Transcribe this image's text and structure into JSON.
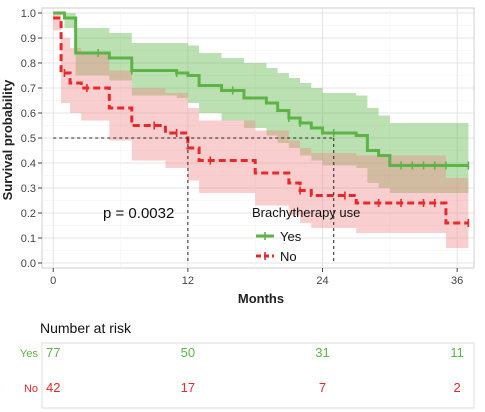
{
  "chart_data": {
    "type": "line",
    "subtype": "kaplan-meier survival curve with risk table",
    "xlabel": "Months",
    "ylabel": "Survival probability",
    "xlim": [
      -1,
      37.5
    ],
    "ylim": [
      -0.02,
      1.02
    ],
    "xticks": [
      0,
      12,
      24,
      36
    ],
    "xtick_labels": [
      "0",
      "12",
      "24",
      "36"
    ],
    "yticks": [
      0.0,
      0.1,
      0.2,
      0.3,
      0.4,
      0.5,
      0.6,
      0.7,
      0.8,
      0.9,
      1.0
    ],
    "ytick_labels": [
      "0.0",
      "0.1",
      "0.2",
      "0.3",
      "0.4",
      "0.5",
      "0.6",
      "0.7",
      "0.8",
      "0.9",
      "1.0"
    ],
    "grid": true,
    "annotation": "p = 0.0032",
    "median_reference": {
      "y": 0.5,
      "x_values": [
        12,
        25
      ]
    },
    "legend": {
      "title": "Brachytherapy use",
      "position": "inside-bottom-right"
    },
    "series": [
      {
        "name": "Yes",
        "color": "#5db446",
        "band_color": "#5db446",
        "line_style": "solid",
        "steps": [
          [
            0,
            1.0
          ],
          [
            1,
            0.98
          ],
          [
            2,
            0.84
          ],
          [
            5,
            0.82
          ],
          [
            7,
            0.77
          ],
          [
            11,
            0.76
          ],
          [
            12,
            0.75
          ],
          [
            13,
            0.71
          ],
          [
            15,
            0.69
          ],
          [
            17,
            0.66
          ],
          [
            19,
            0.64
          ],
          [
            20,
            0.61
          ],
          [
            21,
            0.58
          ],
          [
            22,
            0.56
          ],
          [
            23,
            0.54
          ],
          [
            24,
            0.52
          ],
          [
            27,
            0.51
          ],
          [
            28,
            0.45
          ],
          [
            29,
            0.43
          ],
          [
            30,
            0.39
          ],
          [
            37,
            0.39
          ]
        ],
        "upper": [
          [
            0,
            1.0
          ],
          [
            1,
            1.0
          ],
          [
            2,
            0.94
          ],
          [
            5,
            0.92
          ],
          [
            7,
            0.88
          ],
          [
            11,
            0.88
          ],
          [
            12,
            0.87
          ],
          [
            13,
            0.84
          ],
          [
            15,
            0.82
          ],
          [
            17,
            0.8
          ],
          [
            19,
            0.78
          ],
          [
            20,
            0.76
          ],
          [
            21,
            0.74
          ],
          [
            22,
            0.72
          ],
          [
            23,
            0.7
          ],
          [
            24,
            0.68
          ],
          [
            27,
            0.67
          ],
          [
            28,
            0.62
          ],
          [
            29,
            0.59
          ],
          [
            30,
            0.56
          ],
          [
            37,
            0.56
          ]
        ],
        "lower": [
          [
            0,
            1.0
          ],
          [
            1,
            0.94
          ],
          [
            2,
            0.75
          ],
          [
            5,
            0.73
          ],
          [
            7,
            0.67
          ],
          [
            11,
            0.66
          ],
          [
            12,
            0.64
          ],
          [
            13,
            0.6
          ],
          [
            15,
            0.57
          ],
          [
            17,
            0.54
          ],
          [
            19,
            0.51
          ],
          [
            20,
            0.48
          ],
          [
            21,
            0.46
          ],
          [
            22,
            0.43
          ],
          [
            23,
            0.41
          ],
          [
            24,
            0.39
          ],
          [
            27,
            0.38
          ],
          [
            28,
            0.32
          ],
          [
            29,
            0.3
          ],
          [
            30,
            0.28
          ],
          [
            37,
            0.28
          ]
        ],
        "censor_times": [
          4,
          7,
          11,
          16,
          21,
          22,
          25,
          31,
          32,
          33,
          34,
          35,
          37
        ]
      },
      {
        "name": "No",
        "color": "#e8292b",
        "band_color": "#f08a8a",
        "line_style": "dashed",
        "steps": [
          [
            0,
            0.98
          ],
          [
            0.7,
            0.76
          ],
          [
            1.5,
            0.72
          ],
          [
            2.5,
            0.7
          ],
          [
            5,
            0.62
          ],
          [
            7,
            0.55
          ],
          [
            10,
            0.52
          ],
          [
            12,
            0.46
          ],
          [
            13,
            0.41
          ],
          [
            18,
            0.36
          ],
          [
            21,
            0.32
          ],
          [
            22,
            0.29
          ],
          [
            23,
            0.27
          ],
          [
            27,
            0.24
          ],
          [
            35,
            0.16
          ],
          [
            37,
            0.16
          ]
        ],
        "upper": [
          [
            0,
            1.0
          ],
          [
            0.7,
            0.9
          ],
          [
            1.5,
            0.86
          ],
          [
            2.5,
            0.84
          ],
          [
            5,
            0.77
          ],
          [
            7,
            0.7
          ],
          [
            10,
            0.68
          ],
          [
            12,
            0.62
          ],
          [
            13,
            0.57
          ],
          [
            18,
            0.53
          ],
          [
            21,
            0.49
          ],
          [
            22,
            0.46
          ],
          [
            23,
            0.44
          ],
          [
            27,
            0.43
          ],
          [
            35,
            0.34
          ],
          [
            37,
            0.34
          ]
        ],
        "lower": [
          [
            0,
            0.93
          ],
          [
            0.7,
            0.64
          ],
          [
            1.5,
            0.6
          ],
          [
            2.5,
            0.57
          ],
          [
            5,
            0.49
          ],
          [
            7,
            0.41
          ],
          [
            10,
            0.38
          ],
          [
            12,
            0.33
          ],
          [
            13,
            0.28
          ],
          [
            18,
            0.23
          ],
          [
            21,
            0.19
          ],
          [
            22,
            0.16
          ],
          [
            23,
            0.14
          ],
          [
            27,
            0.12
          ],
          [
            35,
            0.06
          ],
          [
            37,
            0.06
          ]
        ],
        "censor_times": [
          1,
          3,
          9,
          11,
          14,
          22,
          26,
          29,
          31,
          33,
          34,
          37
        ]
      }
    ],
    "risk_table": {
      "title": "Number at risk",
      "times": [
        0,
        12,
        24,
        36
      ],
      "rows": [
        {
          "label": "Yes",
          "color": "#5db446",
          "values": [
            "77",
            "50",
            "31",
            "11"
          ]
        },
        {
          "label": "No",
          "color": "#e8292b",
          "values": [
            "42",
            "17",
            "7",
            "2"
          ]
        }
      ]
    }
  }
}
